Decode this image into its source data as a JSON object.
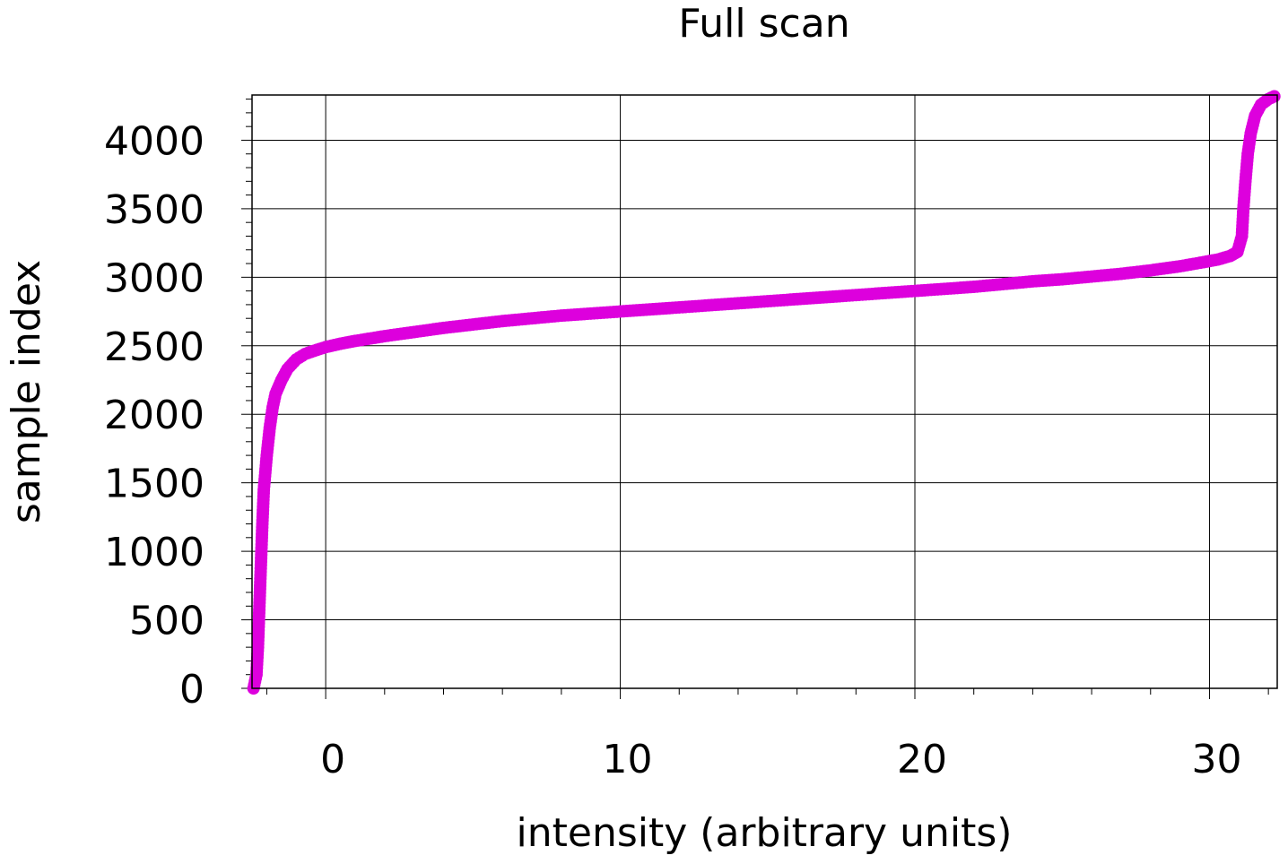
{
  "chart_data": {
    "type": "scatter",
    "title": "Full scan",
    "xlabel": "intensity (arbitrary units)",
    "ylabel": "sample index",
    "xlim": [
      -2.5,
      32.3
    ],
    "ylim": [
      0,
      4330
    ],
    "x_ticks": [
      0,
      10,
      20,
      30
    ],
    "x_tick_labels": [
      "0",
      "10",
      "20",
      "30"
    ],
    "y_ticks": [
      0,
      500,
      1000,
      1500,
      2000,
      2500,
      3000,
      3500,
      4000
    ],
    "y_tick_labels": [
      "0",
      "500",
      "1000",
      "1500",
      "2000",
      "2500",
      "3000",
      "3500",
      "4000"
    ],
    "x_minor_step": 2,
    "y_minor_step": 100,
    "grid": true,
    "legend": "none",
    "marker_color": "#dd00dd",
    "series": [
      {
        "points": [
          [
            -2.45,
            0
          ],
          [
            -2.35,
            100
          ],
          [
            -2.3,
            300
          ],
          [
            -2.25,
            600
          ],
          [
            -2.2,
            900
          ],
          [
            -2.15,
            1200
          ],
          [
            -2.1,
            1450
          ],
          [
            -2.0,
            1700
          ],
          [
            -1.9,
            1900
          ],
          [
            -1.8,
            2050
          ],
          [
            -1.7,
            2150
          ],
          [
            -1.5,
            2250
          ],
          [
            -1.3,
            2330
          ],
          [
            -1.0,
            2400
          ],
          [
            -0.7,
            2440
          ],
          [
            -0.3,
            2470
          ],
          [
            0.0,
            2490
          ],
          [
            0.5,
            2515
          ],
          [
            1.0,
            2535
          ],
          [
            2.0,
            2570
          ],
          [
            3.0,
            2600
          ],
          [
            4.0,
            2630
          ],
          [
            5.0,
            2655
          ],
          [
            6.0,
            2680
          ],
          [
            7.0,
            2700
          ],
          [
            8.0,
            2720
          ],
          [
            9.0,
            2735
          ],
          [
            10.0,
            2750
          ],
          [
            11.0,
            2765
          ],
          [
            12.0,
            2780
          ],
          [
            13.0,
            2795
          ],
          [
            14.0,
            2810
          ],
          [
            15.0,
            2825
          ],
          [
            16.0,
            2840
          ],
          [
            17.0,
            2855
          ],
          [
            18.0,
            2870
          ],
          [
            19.0,
            2885
          ],
          [
            20.0,
            2900
          ],
          [
            21.0,
            2915
          ],
          [
            22.0,
            2930
          ],
          [
            23.0,
            2950
          ],
          [
            24.0,
            2970
          ],
          [
            25.0,
            2985
          ],
          [
            26.0,
            3005
          ],
          [
            27.0,
            3025
          ],
          [
            28.0,
            3050
          ],
          [
            29.0,
            3080
          ],
          [
            29.8,
            3110
          ],
          [
            30.3,
            3130
          ],
          [
            30.7,
            3155
          ],
          [
            30.95,
            3185
          ],
          [
            31.1,
            3300
          ],
          [
            31.15,
            3500
          ],
          [
            31.22,
            3700
          ],
          [
            31.3,
            3900
          ],
          [
            31.4,
            4050
          ],
          [
            31.55,
            4180
          ],
          [
            31.75,
            4260
          ],
          [
            32.0,
            4300
          ],
          [
            32.2,
            4320
          ]
        ]
      }
    ]
  }
}
